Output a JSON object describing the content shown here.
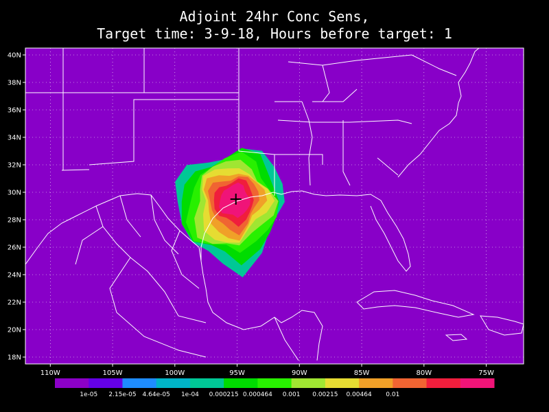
{
  "title_line1": "Adjoint 24hr Conc Sens,",
  "title_line2": "Target time: 3-9-18, Hours before target: 1",
  "map": {
    "lon_range": [
      -112,
      -72
    ],
    "lat_range": [
      17.5,
      40.5
    ],
    "background_color": "#8800c8",
    "grid_style": "dotted",
    "lat_ticks": [
      "40N",
      "38N",
      "36N",
      "34N",
      "32N",
      "30N",
      "28N",
      "26N",
      "24N",
      "22N",
      "20N",
      "18N"
    ],
    "lon_ticks": [
      "110W",
      "105W",
      "100W",
      "95W",
      "90W",
      "85W",
      "80W",
      "75W"
    ],
    "target_marker": {
      "lon": -95.1,
      "lat": 29.5,
      "symbol": "plus"
    }
  },
  "colorbar": {
    "colors": [
      "#8c00c8",
      "#6400e6",
      "#1e8cff",
      "#00b4c8",
      "#00c896",
      "#00dc00",
      "#28f000",
      "#a0e632",
      "#e6dc32",
      "#f0a028",
      "#f06432",
      "#f01e3c",
      "#f01478"
    ],
    "labels": [
      "1e-05",
      "2.15e-05",
      "4.64e-05",
      "1e-04",
      "0.000215",
      "0.000464",
      "0.001",
      "0.00215",
      "0.00464",
      "0.01"
    ]
  }
}
